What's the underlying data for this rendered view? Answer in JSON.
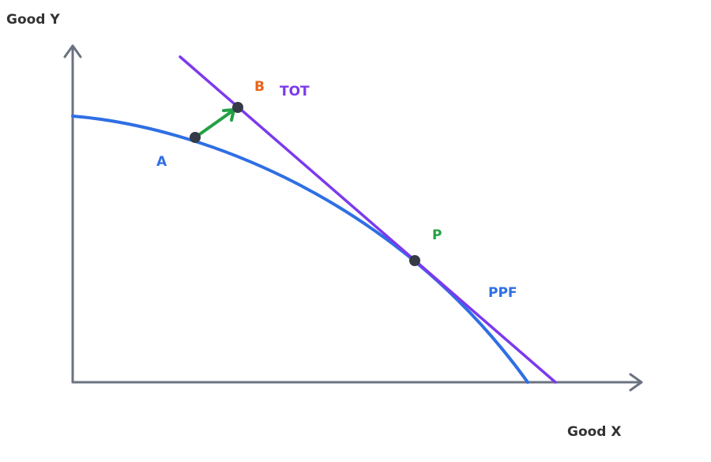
{
  "axes": {
    "y_label": "Good Y",
    "x_label": "Good X"
  },
  "points": [
    {
      "label": "A"
    },
    {
      "label": "B"
    },
    {
      "label": "P"
    }
  ],
  "curves": [
    {
      "label": "PPF"
    },
    {
      "label": "TOT"
    }
  ]
}
